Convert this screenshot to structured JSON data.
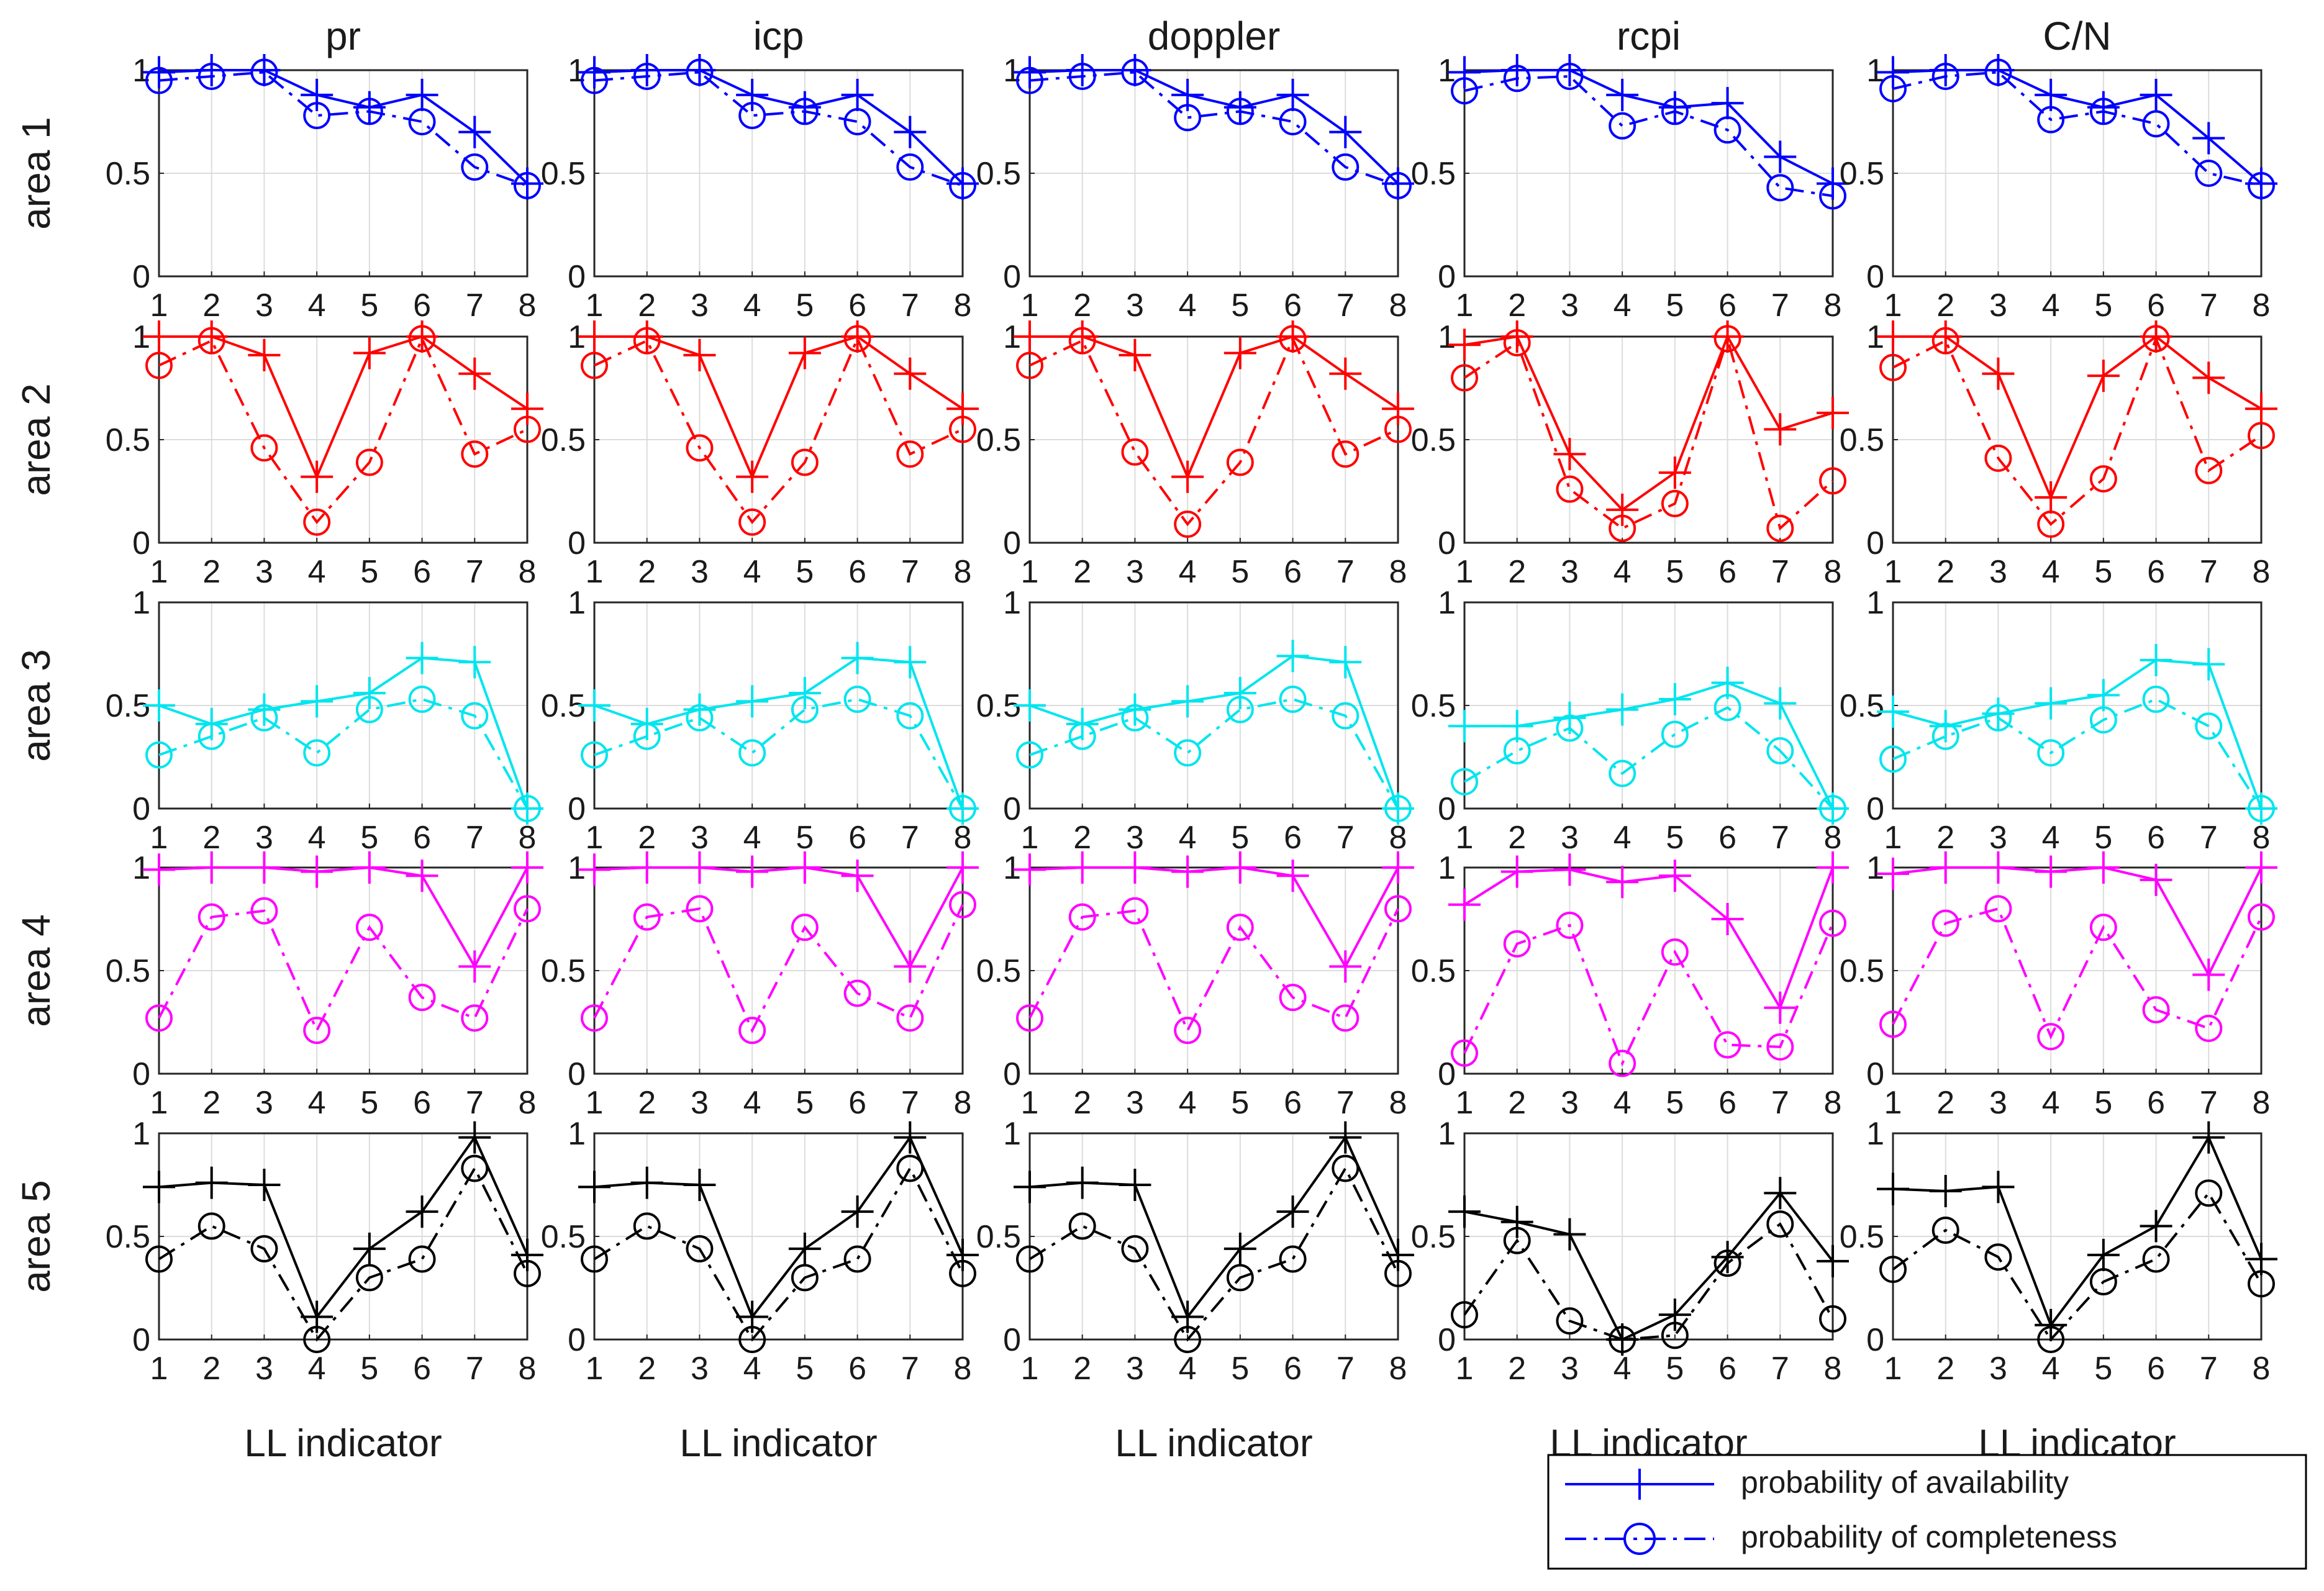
{
  "chart_data": {
    "type": "line",
    "layout": "grid 5 rows x 5 columns of line plots",
    "column_titles": [
      "pr",
      "icp",
      "doppler",
      "rcpi",
      "C/N"
    ],
    "row_labels": [
      "area 1",
      "area 2",
      "area 3",
      "area 4",
      "area 5"
    ],
    "row_colors": [
      "#0000ff",
      "#ff0000",
      "#00e5ee",
      "#ff00ff",
      "#000000"
    ],
    "x": [
      1,
      2,
      3,
      4,
      5,
      6,
      7,
      8
    ],
    "x_tick_labels": [
      "1",
      "2",
      "3",
      "4",
      "5",
      "6",
      "7",
      "8"
    ],
    "xlabel": "LL indicator",
    "ylim": [
      0,
      1
    ],
    "y_tick_labels": [
      "0",
      "0.5",
      "1"
    ],
    "grid": true,
    "legend": {
      "placement": "bottom-right",
      "entries": [
        "probability of availability",
        "probability of completeness"
      ]
    },
    "series_names": [
      "probability of availability",
      "probability of completeness"
    ],
    "panels": [
      [
        {
          "availability": [
            0.99,
            1.0,
            1.0,
            0.88,
            0.82,
            0.88,
            0.7,
            0.45
          ],
          "completeness": [
            0.95,
            0.97,
            0.99,
            0.78,
            0.8,
            0.75,
            0.53,
            0.44
          ]
        },
        {
          "availability": [
            0.99,
            1.0,
            1.0,
            0.88,
            0.82,
            0.88,
            0.7,
            0.45
          ],
          "completeness": [
            0.95,
            0.97,
            0.99,
            0.78,
            0.8,
            0.75,
            0.53,
            0.44
          ]
        },
        {
          "availability": [
            0.99,
            1.0,
            1.0,
            0.88,
            0.82,
            0.88,
            0.7,
            0.45
          ],
          "completeness": [
            0.95,
            0.97,
            0.99,
            0.77,
            0.8,
            0.75,
            0.53,
            0.44
          ]
        },
        {
          "availability": [
            0.99,
            1.0,
            1.0,
            0.88,
            0.82,
            0.84,
            0.58,
            0.45
          ],
          "completeness": [
            0.9,
            0.96,
            0.97,
            0.73,
            0.8,
            0.71,
            0.43,
            0.39
          ]
        },
        {
          "availability": [
            0.99,
            1.0,
            1.0,
            0.88,
            0.82,
            0.88,
            0.67,
            0.45
          ],
          "completeness": [
            0.91,
            0.97,
            0.99,
            0.76,
            0.8,
            0.74,
            0.5,
            0.44
          ]
        }
      ],
      [
        {
          "availability": [
            1.0,
            1.0,
            0.91,
            0.32,
            0.92,
            1.0,
            0.82,
            0.65
          ],
          "completeness": [
            0.86,
            0.98,
            0.46,
            0.1,
            0.39,
            0.99,
            0.43,
            0.55
          ]
        },
        {
          "availability": [
            1.0,
            1.0,
            0.91,
            0.32,
            0.92,
            1.0,
            0.82,
            0.65
          ],
          "completeness": [
            0.86,
            0.98,
            0.46,
            0.1,
            0.39,
            0.99,
            0.43,
            0.55
          ]
        },
        {
          "availability": [
            1.0,
            1.0,
            0.91,
            0.32,
            0.92,
            1.0,
            0.82,
            0.65
          ],
          "completeness": [
            0.86,
            0.98,
            0.44,
            0.09,
            0.39,
            0.99,
            0.43,
            0.55
          ]
        },
        {
          "availability": [
            0.96,
            1.0,
            0.43,
            0.16,
            0.34,
            1.0,
            0.55,
            0.63
          ],
          "completeness": [
            0.8,
            0.97,
            0.26,
            0.07,
            0.19,
            0.99,
            0.07,
            0.3
          ]
        },
        {
          "availability": [
            1.0,
            1.0,
            0.82,
            0.22,
            0.81,
            1.0,
            0.8,
            0.65
          ],
          "completeness": [
            0.85,
            0.98,
            0.41,
            0.09,
            0.31,
            0.99,
            0.35,
            0.52
          ]
        }
      ],
      [
        {
          "availability": [
            0.5,
            0.41,
            0.48,
            0.52,
            0.56,
            0.73,
            0.71,
            0.0
          ],
          "completeness": [
            0.26,
            0.35,
            0.44,
            0.27,
            0.48,
            0.53,
            0.45,
            0.0
          ]
        },
        {
          "availability": [
            0.5,
            0.41,
            0.48,
            0.52,
            0.56,
            0.73,
            0.71,
            0.0
          ],
          "completeness": [
            0.26,
            0.35,
            0.44,
            0.27,
            0.48,
            0.53,
            0.45,
            0.0
          ]
        },
        {
          "availability": [
            0.5,
            0.41,
            0.48,
            0.52,
            0.56,
            0.74,
            0.71,
            0.0
          ],
          "completeness": [
            0.26,
            0.35,
            0.44,
            0.27,
            0.48,
            0.53,
            0.45,
            0.0
          ]
        },
        {
          "availability": [
            0.4,
            0.4,
            0.44,
            0.48,
            0.53,
            0.61,
            0.51,
            0.0
          ],
          "completeness": [
            0.13,
            0.28,
            0.39,
            0.17,
            0.36,
            0.49,
            0.28,
            0.0
          ]
        },
        {
          "availability": [
            0.47,
            0.4,
            0.46,
            0.51,
            0.55,
            0.72,
            0.7,
            0.0
          ],
          "completeness": [
            0.24,
            0.35,
            0.44,
            0.27,
            0.43,
            0.53,
            0.4,
            0.0
          ]
        }
      ],
      [
        {
          "availability": [
            0.99,
            1.0,
            1.0,
            0.98,
            1.0,
            0.96,
            0.52,
            1.0
          ],
          "completeness": [
            0.27,
            0.76,
            0.79,
            0.21,
            0.71,
            0.37,
            0.27,
            0.8
          ]
        },
        {
          "availability": [
            0.99,
            1.0,
            1.0,
            0.98,
            1.0,
            0.96,
            0.52,
            1.0
          ],
          "completeness": [
            0.27,
            0.76,
            0.8,
            0.21,
            0.71,
            0.39,
            0.27,
            0.82
          ]
        },
        {
          "availability": [
            0.99,
            1.0,
            1.0,
            0.98,
            1.0,
            0.96,
            0.52,
            1.0
          ],
          "completeness": [
            0.27,
            0.76,
            0.79,
            0.21,
            0.71,
            0.37,
            0.27,
            0.8
          ]
        },
        {
          "availability": [
            0.82,
            0.98,
            0.99,
            0.93,
            0.96,
            0.75,
            0.32,
            1.0
          ],
          "completeness": [
            0.1,
            0.63,
            0.72,
            0.05,
            0.59,
            0.14,
            0.13,
            0.73
          ]
        },
        {
          "availability": [
            0.97,
            1.0,
            1.0,
            0.98,
            1.0,
            0.94,
            0.48,
            1.0
          ],
          "completeness": [
            0.24,
            0.73,
            0.8,
            0.18,
            0.71,
            0.31,
            0.22,
            0.76
          ]
        }
      ],
      [
        {
          "availability": [
            0.74,
            0.76,
            0.75,
            0.11,
            0.44,
            0.62,
            0.98,
            0.41
          ],
          "completeness": [
            0.39,
            0.55,
            0.44,
            0.0,
            0.3,
            0.39,
            0.83,
            0.32
          ]
        },
        {
          "availability": [
            0.74,
            0.76,
            0.75,
            0.11,
            0.44,
            0.62,
            0.98,
            0.41
          ],
          "completeness": [
            0.39,
            0.55,
            0.44,
            0.0,
            0.3,
            0.39,
            0.83,
            0.32
          ]
        },
        {
          "availability": [
            0.74,
            0.76,
            0.75,
            0.11,
            0.44,
            0.62,
            0.98,
            0.41
          ],
          "completeness": [
            0.39,
            0.55,
            0.44,
            0.0,
            0.3,
            0.39,
            0.83,
            0.32
          ]
        },
        {
          "availability": [
            0.62,
            0.57,
            0.51,
            0.0,
            0.12,
            0.4,
            0.71,
            0.38
          ],
          "completeness": [
            0.12,
            0.48,
            0.09,
            0.0,
            0.02,
            0.37,
            0.56,
            0.1
          ]
        },
        {
          "availability": [
            0.73,
            0.72,
            0.74,
            0.07,
            0.41,
            0.55,
            0.98,
            0.39
          ],
          "completeness": [
            0.34,
            0.53,
            0.4,
            0.0,
            0.28,
            0.39,
            0.71,
            0.27
          ]
        }
      ]
    ]
  }
}
